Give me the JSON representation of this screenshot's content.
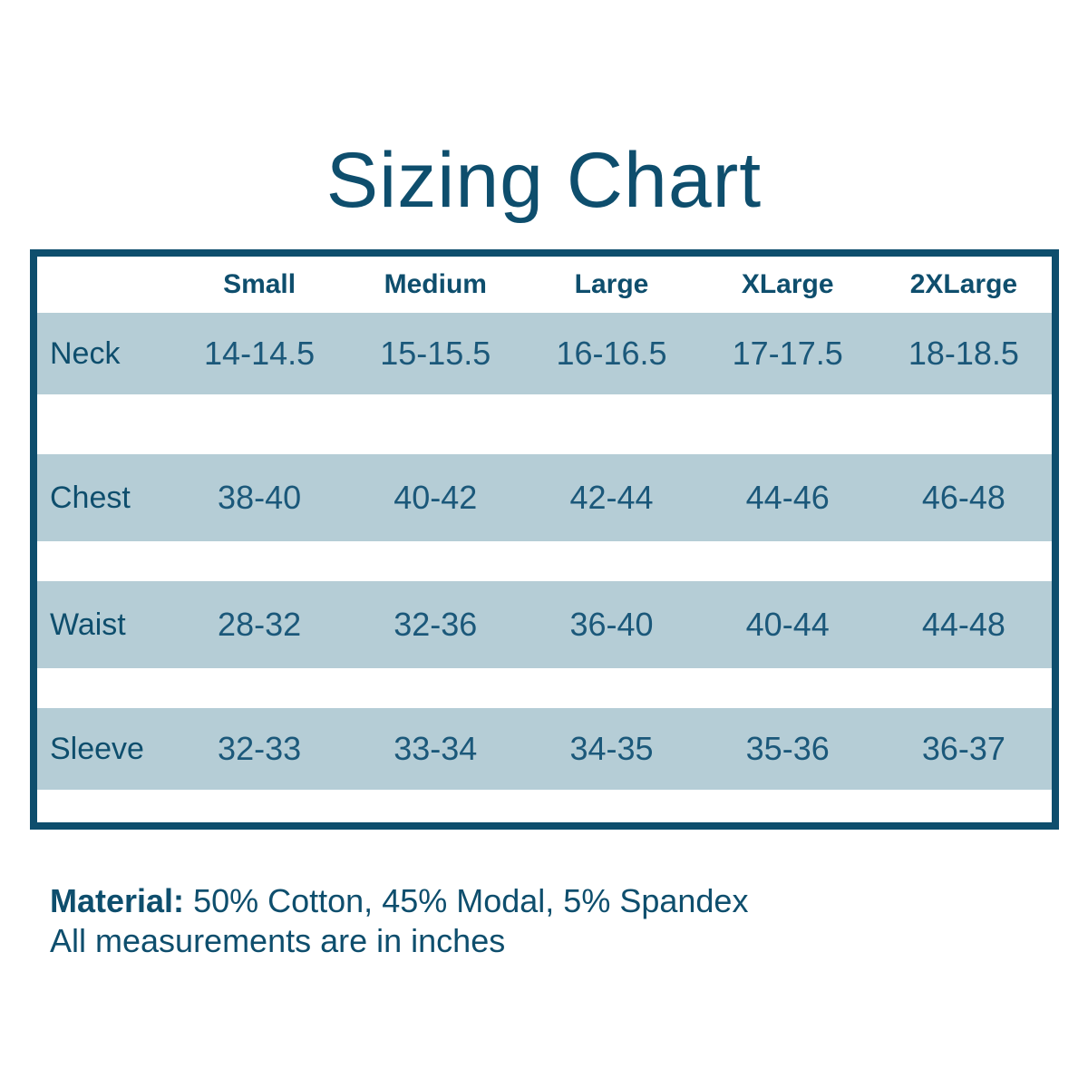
{
  "title": "Sizing Chart",
  "table": {
    "columns": [
      "Small",
      "Medium",
      "Large",
      "XLarge",
      "2XLarge"
    ],
    "rows": [
      {
        "label": "Neck",
        "values": [
          "14-14.5",
          "15-15.5",
          "16-16.5",
          "17-17.5",
          "18-18.5"
        ]
      },
      {
        "label": "Chest",
        "values": [
          "38-40",
          "40-42",
          "42-44",
          "44-46",
          "46-48"
        ]
      },
      {
        "label": "Waist",
        "values": [
          "28-32",
          "32-36",
          "36-40",
          "40-44",
          "44-48"
        ]
      },
      {
        "label": "Sleeve",
        "values": [
          "32-33",
          "33-34",
          "34-35",
          "35-36",
          "36-37"
        ]
      }
    ]
  },
  "footer": {
    "material_label": "Material:",
    "material_value": "50% Cotton, 45% Modal, 5% Spandex",
    "note": "All measurements are in inches"
  },
  "colors": {
    "accent_dark_teal": "#0e4e6d",
    "value_text": "#1b587a",
    "row_band": "#b5cdd6",
    "background": "#ffffff"
  },
  "chart_data": {
    "type": "table",
    "title": "Sizing Chart",
    "columns": [
      "",
      "Small",
      "Medium",
      "Large",
      "XLarge",
      "2XLarge"
    ],
    "rows": [
      [
        "Neck",
        "14-14.5",
        "15-15.5",
        "16-16.5",
        "17-17.5",
        "18-18.5"
      ],
      [
        "Chest",
        "38-40",
        "40-42",
        "42-44",
        "44-46",
        "46-48"
      ],
      [
        "Waist",
        "28-32",
        "32-36",
        "36-40",
        "40-44",
        "44-48"
      ],
      [
        "Sleeve",
        "32-33",
        "33-34",
        "34-35",
        "35-36",
        "36-37"
      ]
    ],
    "units": "inches",
    "notes": "Material: 50% Cotton, 45% Modal, 5% Spandex"
  }
}
